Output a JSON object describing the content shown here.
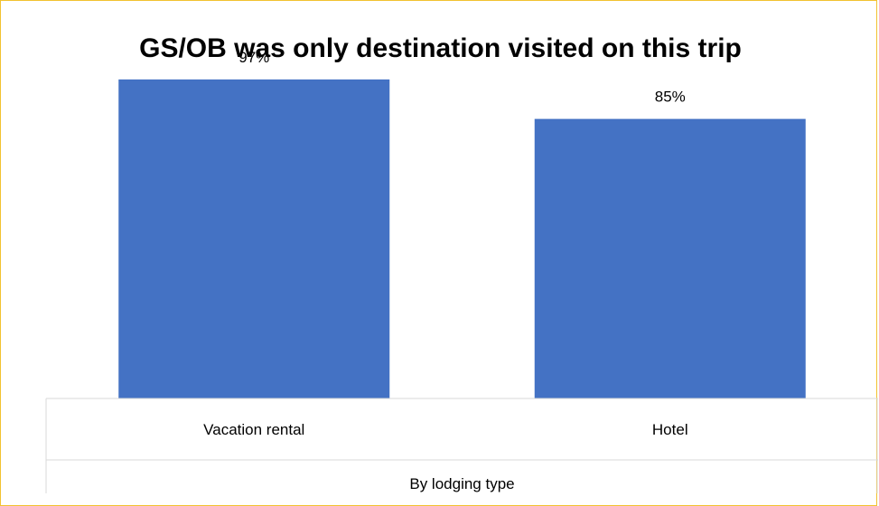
{
  "chart_data": {
    "type": "bar",
    "title": "GS/OB was only destination visited on this trip",
    "categories": [
      "Vacation rental",
      "Hotel"
    ],
    "values": [
      97,
      85
    ],
    "data_labels": [
      "97%",
      "85%"
    ],
    "xlabel": "By lodging type",
    "ylabel": "",
    "ylim": [
      0,
      100
    ],
    "grid": false,
    "legend": "none",
    "colors": {
      "bar": "#4472c4",
      "frame": "#f2c230",
      "table_line": "#d9d9d9"
    }
  }
}
